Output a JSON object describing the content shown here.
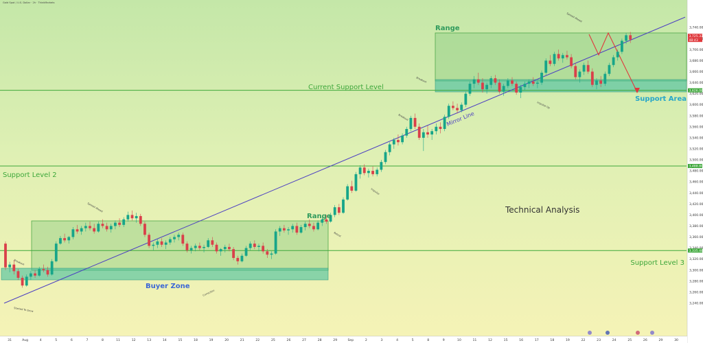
{
  "header": {
    "symbol": "Gold Spot / U.S. Dollar · 2h · ThinkMarkets",
    "currency": "USD"
  },
  "chart_data": {
    "type": "candlestick",
    "title": "",
    "xlabel": "",
    "ylabel": "",
    "ylim": [
      3220,
      3775
    ],
    "y_ticks": [
      3240,
      3260,
      3280,
      3300,
      3320,
      3340,
      3360,
      3380,
      3400,
      3420,
      3440,
      3460,
      3480,
      3500,
      3520,
      3540,
      3560,
      3580,
      3600,
      3620,
      3640,
      3660,
      3680,
      3700,
      3720,
      3740
    ],
    "x_ticks": [
      "31",
      "Aug",
      "4",
      "5",
      "6",
      "7",
      "8",
      "11",
      "12",
      "13",
      "14",
      "15",
      "18",
      "19",
      "20",
      "21",
      "22",
      "25",
      "26",
      "27",
      "28",
      "29",
      "Sep",
      "2",
      "3",
      "4",
      "5",
      "8",
      "9",
      "10",
      "11",
      "12",
      "15",
      "16",
      "17",
      "18",
      "19",
      "22",
      "23",
      "24",
      "25",
      "26",
      "29",
      "30"
    ],
    "series": [
      {
        "values": [
          [
            3348,
            3352,
            3300,
            3305
          ],
          [
            3305,
            3315,
            3296,
            3310
          ],
          [
            3310,
            3318,
            3292,
            3298
          ],
          [
            3298,
            3302,
            3282,
            3286
          ],
          [
            3286,
            3290,
            3268,
            3272
          ],
          [
            3272,
            3292,
            3270,
            3288
          ],
          [
            3288,
            3298,
            3282,
            3294
          ],
          [
            3294,
            3300,
            3286,
            3290
          ],
          [
            3290,
            3306,
            3288,
            3302
          ],
          [
            3302,
            3310,
            3296,
            3300
          ],
          [
            3300,
            3306,
            3288,
            3292
          ],
          [
            3292,
            3320,
            3290,
            3316
          ],
          [
            3316,
            3352,
            3314,
            3348
          ],
          [
            3348,
            3362,
            3346,
            3358
          ],
          [
            3358,
            3366,
            3350,
            3354
          ],
          [
            3354,
            3362,
            3348,
            3360
          ],
          [
            3360,
            3378,
            3356,
            3374
          ],
          [
            3374,
            3382,
            3366,
            3370
          ],
          [
            3370,
            3380,
            3364,
            3376
          ],
          [
            3376,
            3386,
            3370,
            3380
          ],
          [
            3380,
            3388,
            3372,
            3376
          ],
          [
            3376,
            3384,
            3366,
            3370
          ],
          [
            3370,
            3388,
            3368,
            3384
          ],
          [
            3384,
            3392,
            3376,
            3380
          ],
          [
            3380,
            3386,
            3370,
            3374
          ],
          [
            3374,
            3384,
            3368,
            3380
          ],
          [
            3380,
            3390,
            3374,
            3386
          ],
          [
            3386,
            3394,
            3378,
            3382
          ],
          [
            3382,
            3396,
            3378,
            3392
          ],
          [
            3392,
            3406,
            3388,
            3400
          ],
          [
            3400,
            3408,
            3390,
            3394
          ],
          [
            3394,
            3404,
            3386,
            3398
          ],
          [
            3398,
            3402,
            3380,
            3384
          ],
          [
            3384,
            3388,
            3360,
            3364
          ],
          [
            3364,
            3368,
            3340,
            3344
          ],
          [
            3344,
            3350,
            3336,
            3346
          ],
          [
            3346,
            3356,
            3340,
            3352
          ],
          [
            3352,
            3358,
            3342,
            3346
          ],
          [
            3346,
            3354,
            3338,
            3350
          ],
          [
            3350,
            3360,
            3346,
            3356
          ],
          [
            3356,
            3364,
            3350,
            3360
          ],
          [
            3360,
            3368,
            3354,
            3364
          ],
          [
            3364,
            3368,
            3344,
            3348
          ],
          [
            3348,
            3352,
            3332,
            3336
          ],
          [
            3336,
            3344,
            3330,
            3340
          ],
          [
            3340,
            3348,
            3334,
            3344
          ],
          [
            3344,
            3350,
            3336,
            3340
          ],
          [
            3340,
            3346,
            3332,
            3342
          ],
          [
            3342,
            3358,
            3340,
            3354
          ],
          [
            3354,
            3360,
            3342,
            3346
          ],
          [
            3346,
            3350,
            3330,
            3334
          ],
          [
            3334,
            3340,
            3326,
            3338
          ],
          [
            3338,
            3346,
            3332,
            3342
          ],
          [
            3342,
            3348,
            3334,
            3338
          ],
          [
            3338,
            3342,
            3318,
            3322
          ],
          [
            3322,
            3326,
            3310,
            3316
          ],
          [
            3316,
            3330,
            3314,
            3326
          ],
          [
            3326,
            3344,
            3324,
            3340
          ],
          [
            3340,
            3352,
            3336,
            3348
          ],
          [
            3348,
            3354,
            3338,
            3342
          ],
          [
            3342,
            3348,
            3334,
            3344
          ],
          [
            3344,
            3350,
            3330,
            3334
          ],
          [
            3334,
            3338,
            3322,
            3328
          ],
          [
            3328,
            3334,
            3320,
            3330
          ],
          [
            3330,
            3374,
            3328,
            3370
          ],
          [
            3370,
            3380,
            3362,
            3376
          ],
          [
            3376,
            3382,
            3368,
            3372
          ],
          [
            3372,
            3378,
            3364,
            3374
          ],
          [
            3374,
            3384,
            3368,
            3380
          ],
          [
            3380,
            3386,
            3364,
            3368
          ],
          [
            3368,
            3382,
            3366,
            3378
          ],
          [
            3378,
            3388,
            3372,
            3384
          ],
          [
            3384,
            3392,
            3376,
            3380
          ],
          [
            3380,
            3386,
            3370,
            3374
          ],
          [
            3374,
            3390,
            3372,
            3386
          ],
          [
            3386,
            3396,
            3380,
            3392
          ],
          [
            3392,
            3400,
            3384,
            3388
          ],
          [
            3388,
            3404,
            3386,
            3400
          ],
          [
            3400,
            3418,
            3396,
            3414
          ],
          [
            3414,
            3420,
            3400,
            3404
          ],
          [
            3404,
            3432,
            3402,
            3428
          ],
          [
            3428,
            3456,
            3426,
            3452
          ],
          [
            3452,
            3462,
            3440,
            3444
          ],
          [
            3444,
            3478,
            3442,
            3474
          ],
          [
            3474,
            3490,
            3466,
            3486
          ],
          [
            3486,
            3492,
            3472,
            3476
          ],
          [
            3476,
            3484,
            3468,
            3480
          ],
          [
            3480,
            3488,
            3470,
            3474
          ],
          [
            3474,
            3486,
            3470,
            3482
          ],
          [
            3482,
            3500,
            3478,
            3496
          ],
          [
            3496,
            3518,
            3492,
            3514
          ],
          [
            3514,
            3532,
            3508,
            3528
          ],
          [
            3528,
            3540,
            3520,
            3536
          ],
          [
            3536,
            3546,
            3526,
            3532
          ],
          [
            3532,
            3548,
            3528,
            3544
          ],
          [
            3544,
            3560,
            3540,
            3556
          ],
          [
            3556,
            3580,
            3552,
            3576
          ],
          [
            3576,
            3584,
            3556,
            3560
          ],
          [
            3560,
            3566,
            3536,
            3540
          ],
          [
            3540,
            3556,
            3516,
            3550
          ],
          [
            3550,
            3562,
            3540,
            3546
          ],
          [
            3546,
            3556,
            3536,
            3552
          ],
          [
            3552,
            3566,
            3546,
            3560
          ],
          [
            3560,
            3568,
            3548,
            3556
          ],
          [
            3556,
            3582,
            3552,
            3578
          ],
          [
            3578,
            3602,
            3574,
            3598
          ],
          [
            3598,
            3606,
            3590,
            3594
          ],
          [
            3594,
            3602,
            3584,
            3590
          ],
          [
            3590,
            3604,
            3586,
            3600
          ],
          [
            3600,
            3624,
            3596,
            3620
          ],
          [
            3620,
            3642,
            3616,
            3638
          ],
          [
            3638,
            3652,
            3630,
            3646
          ],
          [
            3646,
            3658,
            3636,
            3640
          ],
          [
            3640,
            3648,
            3622,
            3628
          ],
          [
            3628,
            3640,
            3620,
            3636
          ],
          [
            3636,
            3652,
            3630,
            3648
          ],
          [
            3648,
            3654,
            3636,
            3640
          ],
          [
            3640,
            3646,
            3620,
            3624
          ],
          [
            3624,
            3638,
            3616,
            3634
          ],
          [
            3634,
            3648,
            3630,
            3644
          ],
          [
            3644,
            3650,
            3634,
            3638
          ],
          [
            3638,
            3642,
            3618,
            3622
          ],
          [
            3622,
            3636,
            3612,
            3632
          ],
          [
            3632,
            3642,
            3626,
            3638
          ],
          [
            3638,
            3646,
            3630,
            3642
          ],
          [
            3642,
            3650,
            3634,
            3638
          ],
          [
            3638,
            3644,
            3630,
            3640
          ],
          [
            3640,
            3662,
            3636,
            3658
          ],
          [
            3658,
            3684,
            3654,
            3680
          ],
          [
            3680,
            3690,
            3670,
            3674
          ],
          [
            3674,
            3696,
            3670,
            3692
          ],
          [
            3692,
            3700,
            3680,
            3684
          ],
          [
            3684,
            3694,
            3676,
            3690
          ],
          [
            3690,
            3698,
            3682,
            3686
          ],
          [
            3686,
            3692,
            3666,
            3670
          ],
          [
            3670,
            3676,
            3646,
            3650
          ],
          [
            3650,
            3664,
            3640,
            3660
          ],
          [
            3660,
            3676,
            3654,
            3672
          ],
          [
            3672,
            3680,
            3656,
            3660
          ],
          [
            3660,
            3666,
            3632,
            3636
          ],
          [
            3636,
            3648,
            3628,
            3644
          ],
          [
            3644,
            3652,
            3632,
            3638
          ],
          [
            3638,
            3660,
            3634,
            3656
          ],
          [
            3656,
            3676,
            3652,
            3672
          ],
          [
            3672,
            3690,
            3668,
            3686
          ],
          [
            3686,
            3700,
            3680,
            3696
          ],
          [
            3696,
            3720,
            3692,
            3716
          ],
          [
            3716,
            3730,
            3710,
            3726
          ],
          [
            3726,
            3732,
            3712,
            3718
          ]
        ]
      }
    ],
    "levels": [
      {
        "name": "Current Support Level",
        "value": 3626.08
      },
      {
        "name": "Support Level 2",
        "value": 3488.8
      },
      {
        "name": "Support Level 3",
        "value": 3335.48
      }
    ],
    "price_tags": {
      "last": "3,725.33",
      "change": "48:43",
      "current_support": "3,626.08",
      "support2": "3,488.80",
      "support3": "3,335.48"
    },
    "labels": {
      "range_top": "Range",
      "range_low": "Range",
      "buyer_zone": "Buyer Zone",
      "support_area": "Support Area",
      "mirror_line": "Mirror Line",
      "technical_analysis": "Technical Analysis",
      "breakout_1": "Breakout",
      "breakout_2": "Breakout",
      "breakout_3": "Breakout",
      "spread_ahead": "Spread Ahead",
      "spread_ahead_2": "Spread Ahead",
      "started_to_grow": "Started To Grow",
      "correction": "Correction",
      "retest": "Retest",
      "impulse": "Impulse",
      "impulse_up": "Impulse Up"
    }
  }
}
